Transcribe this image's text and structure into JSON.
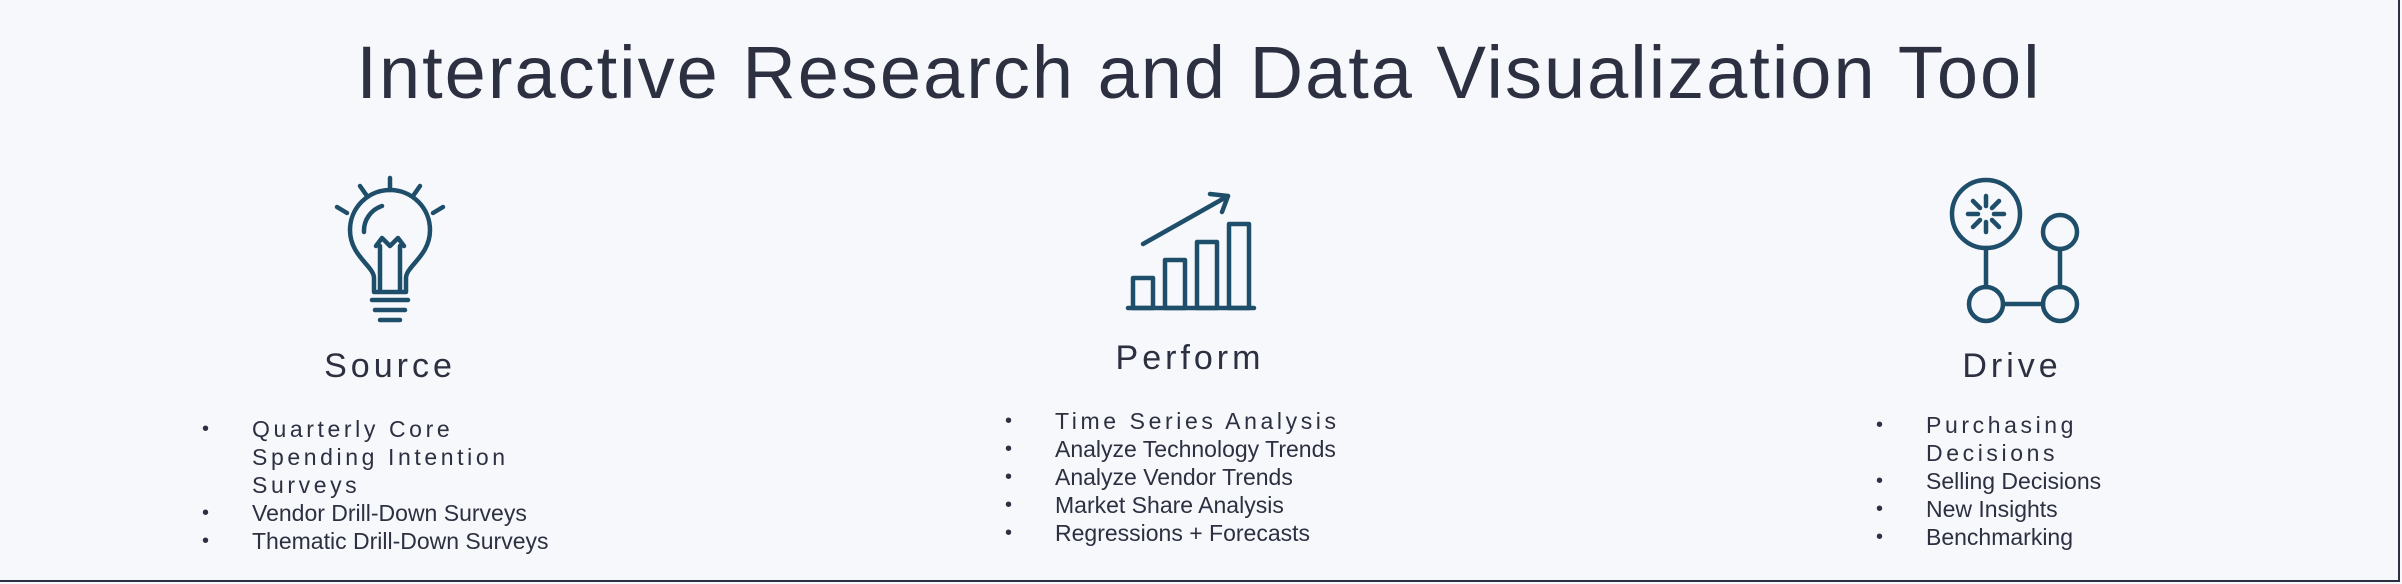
{
  "title": "Interactive Research and Data Visualization Tool",
  "accent_color": "#1f4e6b",
  "columns": [
    {
      "icon": "lightbulb-icon",
      "heading": "Source",
      "items": [
        "Quarterly Core Spending Intention Surveys",
        "Vendor Drill-Down Surveys",
        "Thematic Drill-Down Surveys"
      ]
    },
    {
      "icon": "bar-chart-growth-icon",
      "heading": "Perform",
      "items": [
        "Time Series Analysis",
        "Analyze Technology Trends",
        "Analyze Vendor Trends",
        "Market Share Analysis",
        "Regressions + Forecasts"
      ]
    },
    {
      "icon": "network-nodes-icon",
      "heading": "Drive",
      "items": [
        "Purchasing Decisions",
        "Selling Decisions",
        "New Insights",
        "Benchmarking"
      ]
    }
  ]
}
